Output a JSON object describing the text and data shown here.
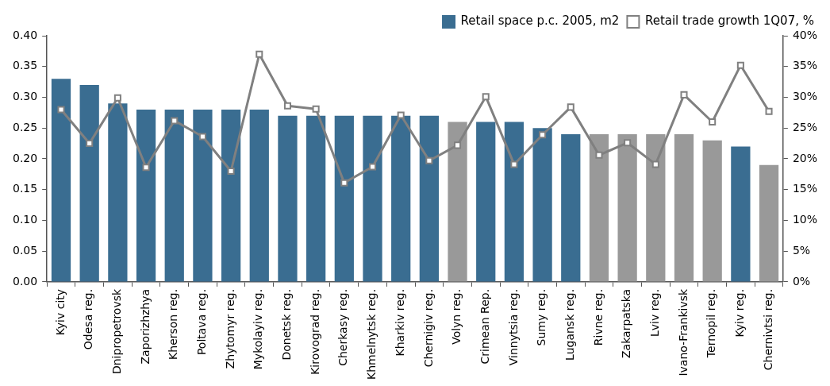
{
  "chart_data": {
    "type": "bar",
    "categories": [
      "Kyiv city",
      "Odesa reg.",
      "Dnipropetrovsk",
      "Zaporizhzhya",
      "Kherson reg.",
      "Poltava reg.",
      "Zhytomyr reg.",
      "Mykolayiv reg.",
      "Donetsk reg.",
      "Kirovograd reg.",
      "Cherkasy reg.",
      "Khmelnytsk reg.",
      "Kharkiv reg.",
      "Chernigiv reg.",
      "Volyn reg.",
      "Crimean Rep.",
      "Vinnytsia reg.",
      "Sumy reg.",
      "Lugansk reg.",
      "Rivne reg.",
      "Zakarpatska",
      "Lviv reg.",
      "Ivano-Frankivsk",
      "Ternopil reg.",
      "Kyiv reg.",
      "Chernivtsi reg."
    ],
    "series": [
      {
        "name": "Retail space p.c. 2005, m2",
        "color": "#3a6d91",
        "colors": [
          "#3a6d91",
          "#3a6d91",
          "#3a6d91",
          "#3a6d91",
          "#3a6d91",
          "#3a6d91",
          "#3a6d91",
          "#3a6d91",
          "#3a6d91",
          "#3a6d91",
          "#3a6d91",
          "#3a6d91",
          "#3a6d91",
          "#3a6d91",
          "#999999",
          "#3a6d91",
          "#3a6d91",
          "#3a6d91",
          "#3a6d91",
          "#999999",
          "#999999",
          "#999999",
          "#999999",
          "#999999",
          "#3a6d91",
          "#999999"
        ],
        "values": [
          0.33,
          0.32,
          0.29,
          0.28,
          0.28,
          0.28,
          0.28,
          0.28,
          0.27,
          0.27,
          0.27,
          0.27,
          0.27,
          0.27,
          0.26,
          0.26,
          0.26,
          0.25,
          0.24,
          0.24,
          0.24,
          0.24,
          0.24,
          0.23,
          0.22,
          0.19
        ]
      },
      {
        "name": "Retail trade growth 1Q07, %",
        "type": "line",
        "axis": "y2",
        "color": "#808080",
        "values": [
          28,
          22.5,
          29.9,
          18.6,
          26.2,
          23.6,
          18,
          37,
          28.6,
          28.1,
          16.1,
          18.7,
          27.1,
          19.7,
          22.2,
          30.1,
          19.1,
          23.9,
          28.4,
          20.6,
          22.6,
          19.1,
          30.4,
          26,
          35.2,
          27.7
        ]
      }
    ],
    "ylim": [
      0,
      0.4
    ],
    "yticks": [
      {
        "value": 0,
        "label": "0.00"
      },
      {
        "value": 0.05,
        "label": "0.05"
      },
      {
        "value": 0.1,
        "label": "0.10"
      },
      {
        "value": 0.15,
        "label": "0.15"
      },
      {
        "value": 0.2,
        "label": "0.20"
      },
      {
        "value": 0.25,
        "label": "0.25"
      },
      {
        "value": 0.3,
        "label": "0.30"
      },
      {
        "value": 0.35,
        "label": "0.35"
      },
      {
        "value": 0.4,
        "label": "0.40"
      }
    ],
    "y2lim": [
      0,
      40
    ],
    "y2ticks": [
      {
        "value": 0,
        "label": "0%"
      },
      {
        "value": 5,
        "label": "5%"
      },
      {
        "value": 10,
        "label": "10%"
      },
      {
        "value": 15,
        "label": "15%"
      },
      {
        "value": 20,
        "label": "20%"
      },
      {
        "value": 25,
        "label": "25%"
      },
      {
        "value": 30,
        "label": "30%"
      },
      {
        "value": 35,
        "label": "35%"
      },
      {
        "value": 40,
        "label": "40%"
      }
    ],
    "grid": false,
    "legend": "top right",
    "marker": "square",
    "line_style": "solid"
  }
}
